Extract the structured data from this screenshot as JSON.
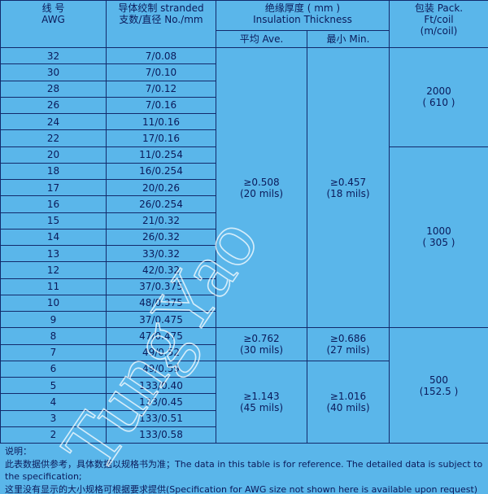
{
  "table": {
    "header": {
      "awg": [
        "线 号",
        "AWG"
      ],
      "stranded": [
        "导体绞制 stranded",
        "支数/直径  No./mm"
      ],
      "insulation": [
        "绝缘厚度 ( mm )",
        "Insulation  Thickness"
      ],
      "ave": "平均 Ave.",
      "min": "最小 Min.",
      "pack": [
        "包装 Pack.",
        "Ft/coil",
        "(m/coil)"
      ]
    },
    "rows": [
      {
        "awg": "32",
        "stranded": "7/0.08",
        "ave": [
          "≥0.508",
          "(20 mils)"
        ],
        "min": [
          "≥0.457",
          "(18 mils)"
        ],
        "pack": [
          "2000",
          "( 610 )"
        ]
      },
      {
        "awg": "30",
        "stranded": "7/0.10"
      },
      {
        "awg": "28",
        "stranded": "7/0.12"
      },
      {
        "awg": "26",
        "stranded": "7/0.16"
      },
      {
        "awg": "24",
        "stranded": "11/0.16"
      },
      {
        "awg": "22",
        "stranded": "17/0.16"
      },
      {
        "awg": "20",
        "stranded": "11/0.254",
        "pack": [
          "1000",
          "( 305 )"
        ]
      },
      {
        "awg": "18",
        "stranded": "16/0.254"
      },
      {
        "awg": "17",
        "stranded": "20/0.26"
      },
      {
        "awg": "16",
        "stranded": "26/0.254"
      },
      {
        "awg": "15",
        "stranded": "21/0.32"
      },
      {
        "awg": "14",
        "stranded": "26/0.32"
      },
      {
        "awg": "13",
        "stranded": "33/0.32"
      },
      {
        "awg": "12",
        "stranded": "42/0.32"
      },
      {
        "awg": "11",
        "stranded": "37/0.375"
      },
      {
        "awg": "10",
        "stranded": "48/0.375"
      },
      {
        "awg": "9",
        "stranded": "37/0.475"
      },
      {
        "awg": "8",
        "stranded": "47/0.475",
        "ave": [
          "≥0.762",
          "(30 mils)"
        ],
        "min": [
          "≥0.686",
          "(27 mils)"
        ],
        "pack": [
          "500",
          "(152.5 )"
        ]
      },
      {
        "awg": "7",
        "stranded": "49/0.52"
      },
      {
        "awg": "6",
        "stranded": "49/0.59",
        "ave": [
          "≥1.143",
          "(45 mils)"
        ],
        "min": [
          "≥1.016",
          "(40 mils)"
        ]
      },
      {
        "awg": "5",
        "stranded": "133/0.40"
      },
      {
        "awg": "4",
        "stranded": "133/0.45"
      },
      {
        "awg": "3",
        "stranded": "133/0.51"
      },
      {
        "awg": "2",
        "stranded": "133/0.58"
      }
    ]
  },
  "notes": [
    "说明：",
    "此表数据供参考，具体数据以规格书为准；The data in this table is for reference. The detailed data is subject to the specification;",
    "这里没有显示的大小规格可根据要求提供(Specification  for AWG size not shown here is available upon request)"
  ],
  "watermark": "TungYao"
}
